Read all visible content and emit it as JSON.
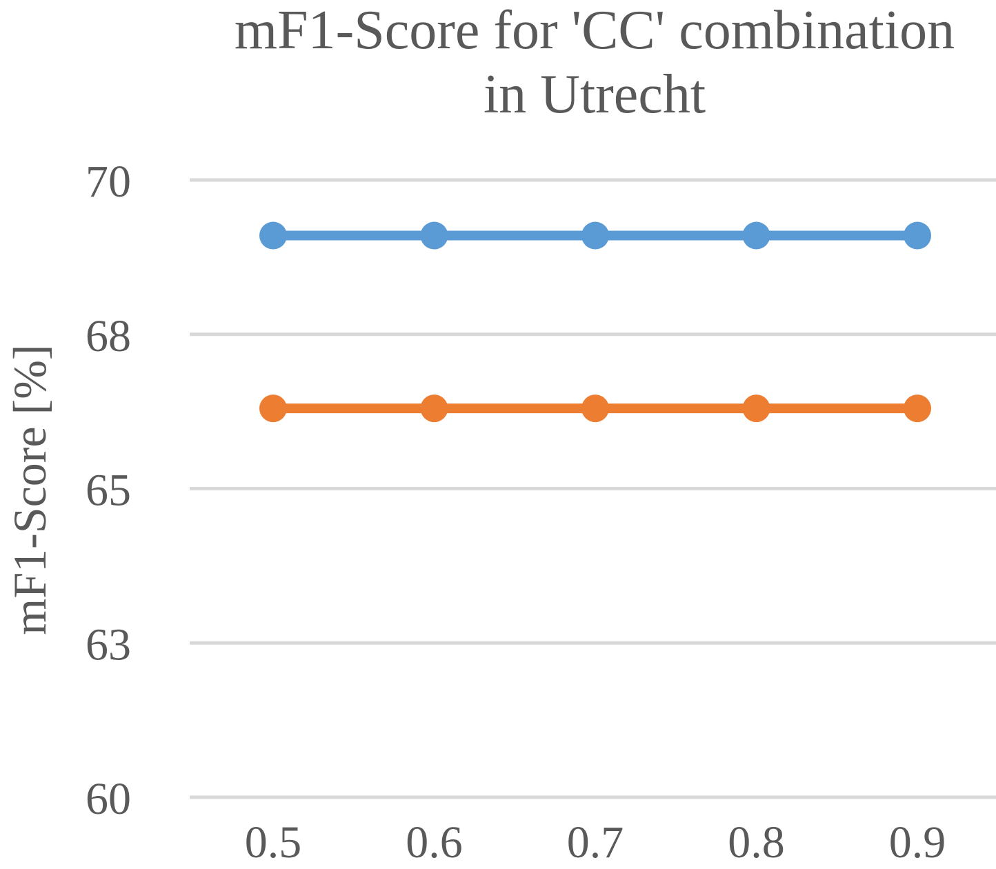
{
  "chart_data": {
    "type": "line",
    "title_lines": [
      "mF1-Score for 'CC' combination",
      "in Utrecht"
    ],
    "xlabel": "",
    "ylabel": "mF1-Score [%]",
    "categories": [
      "0.5",
      "0.6",
      "0.7",
      "0.8",
      "0.9"
    ],
    "y_ticks": [
      {
        "label": "60",
        "value": 60
      },
      {
        "label": "63",
        "value": 62.5
      },
      {
        "label": "65",
        "value": 65
      },
      {
        "label": "68",
        "value": 67.5
      },
      {
        "label": "70",
        "value": 70
      }
    ],
    "ylim": [
      60,
      70
    ],
    "grid": true,
    "legend": "none",
    "series": [
      {
        "color": "#5B9BD5",
        "values": [
          69.1,
          69.1,
          69.1,
          69.1,
          69.1
        ]
      },
      {
        "color": "#ED7D31",
        "values": [
          66.3,
          66.3,
          66.3,
          66.3,
          66.3
        ]
      }
    ]
  }
}
